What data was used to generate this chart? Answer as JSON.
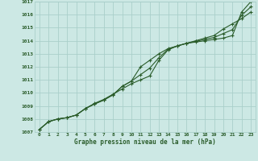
{
  "title": "Graphe pression niveau de la mer (hPa)",
  "bg_color": "#cce8e4",
  "grid_color": "#aacfca",
  "line_color": "#2a5c2a",
  "x_labels": [
    "0",
    "1",
    "2",
    "3",
    "4",
    "5",
    "6",
    "7",
    "8",
    "9",
    "10",
    "11",
    "12",
    "13",
    "14",
    "15",
    "16",
    "17",
    "18",
    "19",
    "20",
    "21",
    "22",
    "23"
  ],
  "ylim": [
    1007,
    1017
  ],
  "yticks": [
    1007,
    1008,
    1009,
    1010,
    1011,
    1012,
    1013,
    1014,
    1015,
    1016,
    1017
  ],
  "line1": [
    1007.2,
    1007.8,
    1008.0,
    1008.1,
    1008.3,
    1008.8,
    1009.2,
    1009.5,
    1009.9,
    1010.3,
    1010.7,
    1011.0,
    1011.3,
    1012.5,
    1013.3,
    1013.6,
    1013.8,
    1013.9,
    1014.0,
    1014.1,
    1014.2,
    1014.4,
    1016.2,
    1017.0
  ],
  "line2": [
    1007.2,
    1007.8,
    1008.0,
    1008.1,
    1008.3,
    1008.8,
    1009.15,
    1009.45,
    1009.85,
    1010.5,
    1010.9,
    1012.0,
    1012.5,
    1013.0,
    1013.4,
    1013.6,
    1013.8,
    1014.0,
    1014.2,
    1014.4,
    1014.9,
    1015.3,
    1015.7,
    1016.2
  ],
  "line3": [
    1007.2,
    1007.8,
    1008.0,
    1008.1,
    1008.3,
    1008.8,
    1009.15,
    1009.45,
    1009.85,
    1010.5,
    1010.9,
    1011.4,
    1011.9,
    1012.7,
    1013.35,
    1013.6,
    1013.8,
    1013.95,
    1014.1,
    1014.25,
    1014.55,
    1014.85,
    1015.95,
    1016.6
  ]
}
